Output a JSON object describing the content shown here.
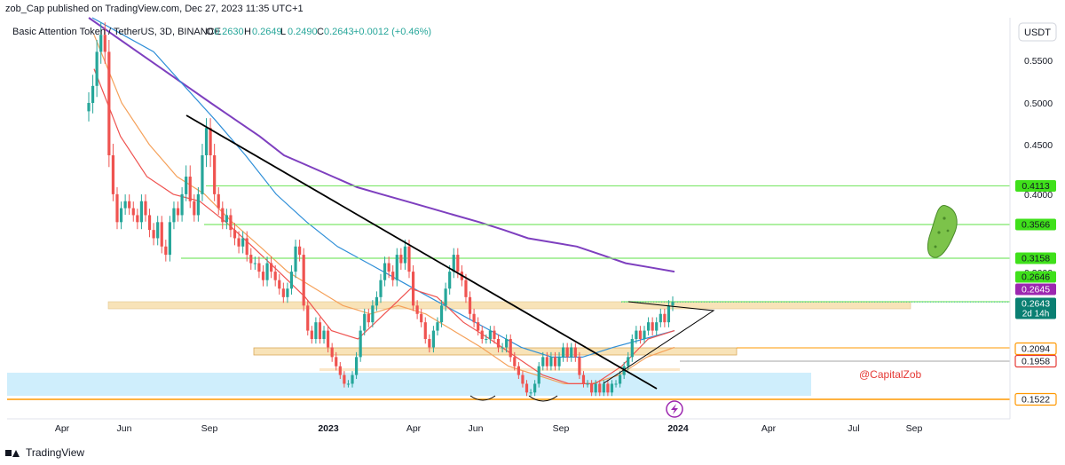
{
  "header": {
    "published": "zob_Cap published on TradingView.com, Dec 27, 2023 11:35 UTC+1",
    "symbol_desc": "Basic Attention Token / TetherUS, 3D, BINANCE",
    "ohlc": {
      "o_label": "O",
      "o": "0.2630",
      "h_label": "H",
      "h": "0.2649",
      "l_label": "L",
      "l": "0.2490",
      "c_label": "C",
      "c": "0.2643",
      "change": "+0.0012 (+0.46%)"
    },
    "currency_button": "USDT"
  },
  "footer": {
    "brand": "TradingView"
  },
  "watermark": "@CapitalZob",
  "colors": {
    "up": "#26a69a",
    "down": "#ef5350",
    "ema_purple": "#7e3fbf",
    "ema_blue": "#2f8fd8",
    "ema_orange": "#f5a15a",
    "ema_red": "#ef5350",
    "level_green": "#7ee86a",
    "zone_beige": "#f8e3b8",
    "zone_blue": "#cfeefc",
    "level_orange": "#ff9800",
    "badge_green": "#3fe01a",
    "badge_purple": "#9c27b0",
    "badge_teal": "#0a7f72",
    "trendline": "#000000"
  },
  "chart_data": {
    "type": "candlestick",
    "title": "Basic Attention Token / TetherUS, 3D, BINANCE",
    "timeframe": "3D",
    "x_ticks": [
      "Apr",
      "Jun",
      "Sep",
      "2023",
      "Apr",
      "Jun",
      "Sep",
      "2024",
      "Apr",
      "Jul",
      "Sep"
    ],
    "y_ticks": [
      "0.5500",
      "0.5000",
      "0.4500",
      "0.4000",
      "0.3000"
    ],
    "ylim": [
      0.13,
      0.6
    ],
    "price_badges": [
      {
        "label": "0.4113",
        "style": "green"
      },
      {
        "label": "0.3566",
        "style": "green"
      },
      {
        "label": "0.3158",
        "style": "green"
      },
      {
        "label": "0.2646",
        "style": "green"
      },
      {
        "label": "0.2645",
        "style": "purple"
      },
      {
        "label": "0.2643",
        "sub": "2d 14h",
        "style": "teal"
      },
      {
        "label": "0.2094",
        "style": "outline-orange"
      },
      {
        "label": "0.1958",
        "style": "outline-red"
      },
      {
        "label": "0.1522",
        "style": "outline-orange"
      }
    ],
    "horizontal_levels": [
      0.4113,
      0.3566,
      0.3158,
      0.2646,
      0.2094,
      0.1958,
      0.1522
    ],
    "series_closes": [
      0.5,
      0.52,
      0.56,
      0.58,
      0.56,
      0.44,
      0.4,
      0.36,
      0.38,
      0.39,
      0.38,
      0.37,
      0.36,
      0.39,
      0.37,
      0.35,
      0.34,
      0.36,
      0.33,
      0.32,
      0.36,
      0.38,
      0.37,
      0.4,
      0.42,
      0.39,
      0.37,
      0.4,
      0.44,
      0.47,
      0.44,
      0.4,
      0.38,
      0.36,
      0.37,
      0.35,
      0.34,
      0.33,
      0.34,
      0.32,
      0.31,
      0.31,
      0.3,
      0.29,
      0.31,
      0.3,
      0.29,
      0.28,
      0.27,
      0.28,
      0.3,
      0.33,
      0.32,
      0.26,
      0.23,
      0.22,
      0.24,
      0.22,
      0.23,
      0.21,
      0.2,
      0.19,
      0.18,
      0.17,
      0.17,
      0.18,
      0.2,
      0.23,
      0.25,
      0.24,
      0.26,
      0.27,
      0.29,
      0.31,
      0.3,
      0.29,
      0.32,
      0.31,
      0.33,
      0.3,
      0.26,
      0.25,
      0.24,
      0.22,
      0.21,
      0.23,
      0.24,
      0.26,
      0.28,
      0.3,
      0.32,
      0.3,
      0.29,
      0.27,
      0.25,
      0.24,
      0.23,
      0.22,
      0.22,
      0.23,
      0.22,
      0.21,
      0.21,
      0.22,
      0.2,
      0.19,
      0.18,
      0.17,
      0.16,
      0.16,
      0.17,
      0.19,
      0.2,
      0.19,
      0.2,
      0.19,
      0.2,
      0.21,
      0.2,
      0.21,
      0.2,
      0.18,
      0.17,
      0.17,
      0.16,
      0.17,
      0.16,
      0.17,
      0.16,
      0.17,
      0.17,
      0.18,
      0.19,
      0.2,
      0.22,
      0.23,
      0.22,
      0.23,
      0.24,
      0.23,
      0.24,
      0.25,
      0.24,
      0.26,
      0.2643
    ],
    "moving_averages": [
      {
        "color": "purple",
        "values": [
          0.6,
          0.58,
          0.56,
          0.54,
          0.52,
          0.5,
          0.48,
          0.46,
          0.44,
          0.43,
          0.42,
          0.41,
          0.4,
          0.39,
          0.38,
          0.37,
          0.36,
          0.35,
          0.34,
          0.335,
          0.33,
          0.32,
          0.31,
          0.305,
          0.3
        ]
      },
      {
        "color": "blue",
        "values": [
          0.6,
          0.58,
          0.56,
          0.52,
          0.48,
          0.44,
          0.4,
          0.36,
          0.33,
          0.31,
          0.29,
          0.27,
          0.25,
          0.23,
          0.21,
          0.2,
          0.2,
          0.21,
          0.22,
          0.23
        ]
      },
      {
        "color": "orange",
        "values": [
          0.58,
          0.5,
          0.45,
          0.42,
          0.4,
          0.36,
          0.33,
          0.3,
          0.28,
          0.26,
          0.25,
          0.26,
          0.25,
          0.23,
          0.21,
          0.19,
          0.18,
          0.17,
          0.17,
          0.18,
          0.2,
          0.21
        ]
      },
      {
        "color": "red",
        "values": [
          0.54,
          0.46,
          0.42,
          0.4,
          0.39,
          0.36,
          0.33,
          0.3,
          0.27,
          0.23,
          0.22,
          0.25,
          0.28,
          0.27,
          0.24,
          0.22,
          0.2,
          0.18,
          0.17,
          0.17,
          0.19,
          0.22,
          0.23
        ]
      }
    ]
  }
}
